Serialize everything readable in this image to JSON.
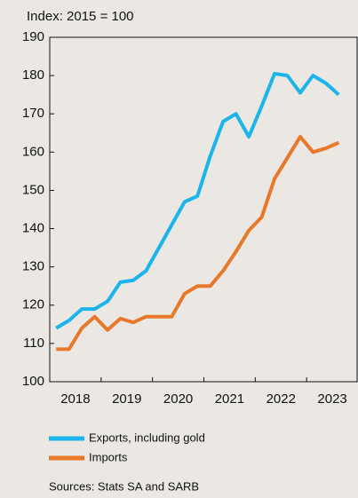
{
  "chart_data": {
    "type": "line",
    "y_label": "Index: 2015 = 100",
    "x": [
      2018.125,
      2018.375,
      2018.625,
      2018.875,
      2019.125,
      2019.375,
      2019.625,
      2019.875,
      2020.125,
      2020.375,
      2020.625,
      2020.875,
      2021.125,
      2021.375,
      2021.625,
      2021.875,
      2022.125,
      2022.375,
      2022.625,
      2022.875,
      2023.125,
      2023.375,
      2023.625
    ],
    "series": [
      {
        "name": "Exports, including gold",
        "color": "#1cb4ea",
        "values": [
          114,
          116,
          119,
          119,
          121,
          126,
          126.5,
          129,
          135,
          141,
          147,
          148.5,
          159,
          168,
          170,
          164,
          172,
          180.5,
          180,
          175.5,
          180,
          178,
          175
        ]
      },
      {
        "name": "Imports",
        "color": "#e8782a",
        "values": [
          108.5,
          108.5,
          114,
          117,
          113.5,
          116.5,
          115.5,
          117,
          117,
          117,
          123,
          125,
          125,
          129,
          134,
          139.5,
          143,
          153,
          158.5,
          164,
          160,
          161,
          162.5
        ]
      }
    ],
    "xlim": [
      2018,
      2024
    ],
    "xticks": [
      {
        "value": 2018.5,
        "label": "2018"
      },
      {
        "value": 2019.5,
        "label": "2019"
      },
      {
        "value": 2020.5,
        "label": "2020"
      },
      {
        "value": 2021.5,
        "label": "2021"
      },
      {
        "value": 2022.5,
        "label": "2022"
      },
      {
        "value": 2023.5,
        "label": "2023"
      }
    ],
    "ylim": [
      100,
      190
    ],
    "yticks": [
      100,
      110,
      120,
      130,
      140,
      150,
      160,
      170,
      180,
      190
    ],
    "source": "Sources: Stats SA and SARB"
  }
}
